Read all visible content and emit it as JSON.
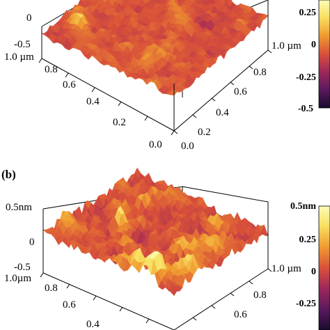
{
  "chart_data": [
    {
      "type": "surface",
      "panel_label": "",
      "z_ticks": [
        "0",
        "-0.5"
      ],
      "y_ticks": [
        "1.0 µm",
        "0.8",
        "0.6",
        "0.4",
        "0.2",
        "0.0"
      ],
      "x_ticks": [
        "1.0 µm",
        "0.8",
        "0.6",
        "0.4",
        "0.2",
        "0.0"
      ],
      "colorbar": {
        "ticks": [
          "0.25",
          "0",
          "-0.25",
          "-0.5"
        ],
        "range": [
          -0.5,
          0.5
        ],
        "colors": [
          "#1a0a2e",
          "#5a1a5e",
          "#a0285a",
          "#d8503a",
          "#f09a30",
          "#f8e060",
          "#fcfcb8"
        ]
      },
      "z_range": [
        -0.5,
        0.5
      ],
      "roughness": "low"
    },
    {
      "type": "surface",
      "panel_label": "(b)",
      "z_ticks": [
        "0.5nm",
        "0",
        "-0.5"
      ],
      "y_ticks": [
        "1.0µm",
        "0.8",
        "0.6",
        "0.4"
      ],
      "x_ticks": [
        "1.0 µm",
        "0.8",
        "0.6"
      ],
      "colorbar": {
        "ticks": [
          "0.5nm",
          "0.25",
          "0",
          "-0.25"
        ],
        "range": [
          -0.5,
          0.5
        ],
        "colors": [
          "#1a0a2e",
          "#5a1a5e",
          "#a0285a",
          "#d8503a",
          "#f09a30",
          "#f8e060",
          "#fcfcb8"
        ]
      },
      "z_range": [
        -0.5,
        0.5
      ],
      "roughness": "high"
    }
  ]
}
